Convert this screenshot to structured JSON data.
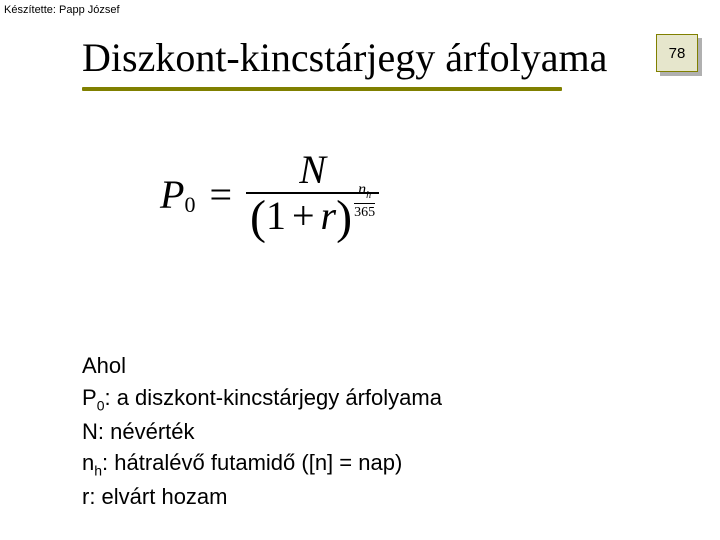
{
  "author_line": "Készítette: Papp József",
  "title": "Diszkont-kincstárjegy árfolyama",
  "page_number": "78",
  "title_underline_color": "#808000",
  "badge_bg": "#e6e6cc",
  "badge_border": "#808000",
  "formula": {
    "lhs_var": "P",
    "lhs_sub": "0",
    "eq": "=",
    "numerator": "N",
    "denom_open": "(",
    "denom_one": "1",
    "denom_plus": "+",
    "denom_r": "r",
    "denom_close": ")",
    "exp_num_var": "n",
    "exp_num_sub": "h",
    "exp_denom": "365"
  },
  "legend": {
    "l0": "Ahol",
    "l1_pre": "P",
    "l1_sub": "0",
    "l1_post": ": a diszkont-kincstárjegy árfolyama",
    "l2": "N: névérték",
    "l3_pre": "n",
    "l3_sub": "h",
    "l3_post": ": hátralévő futamidő ([n] = nap)",
    "l4": "r: elvárt hozam"
  }
}
